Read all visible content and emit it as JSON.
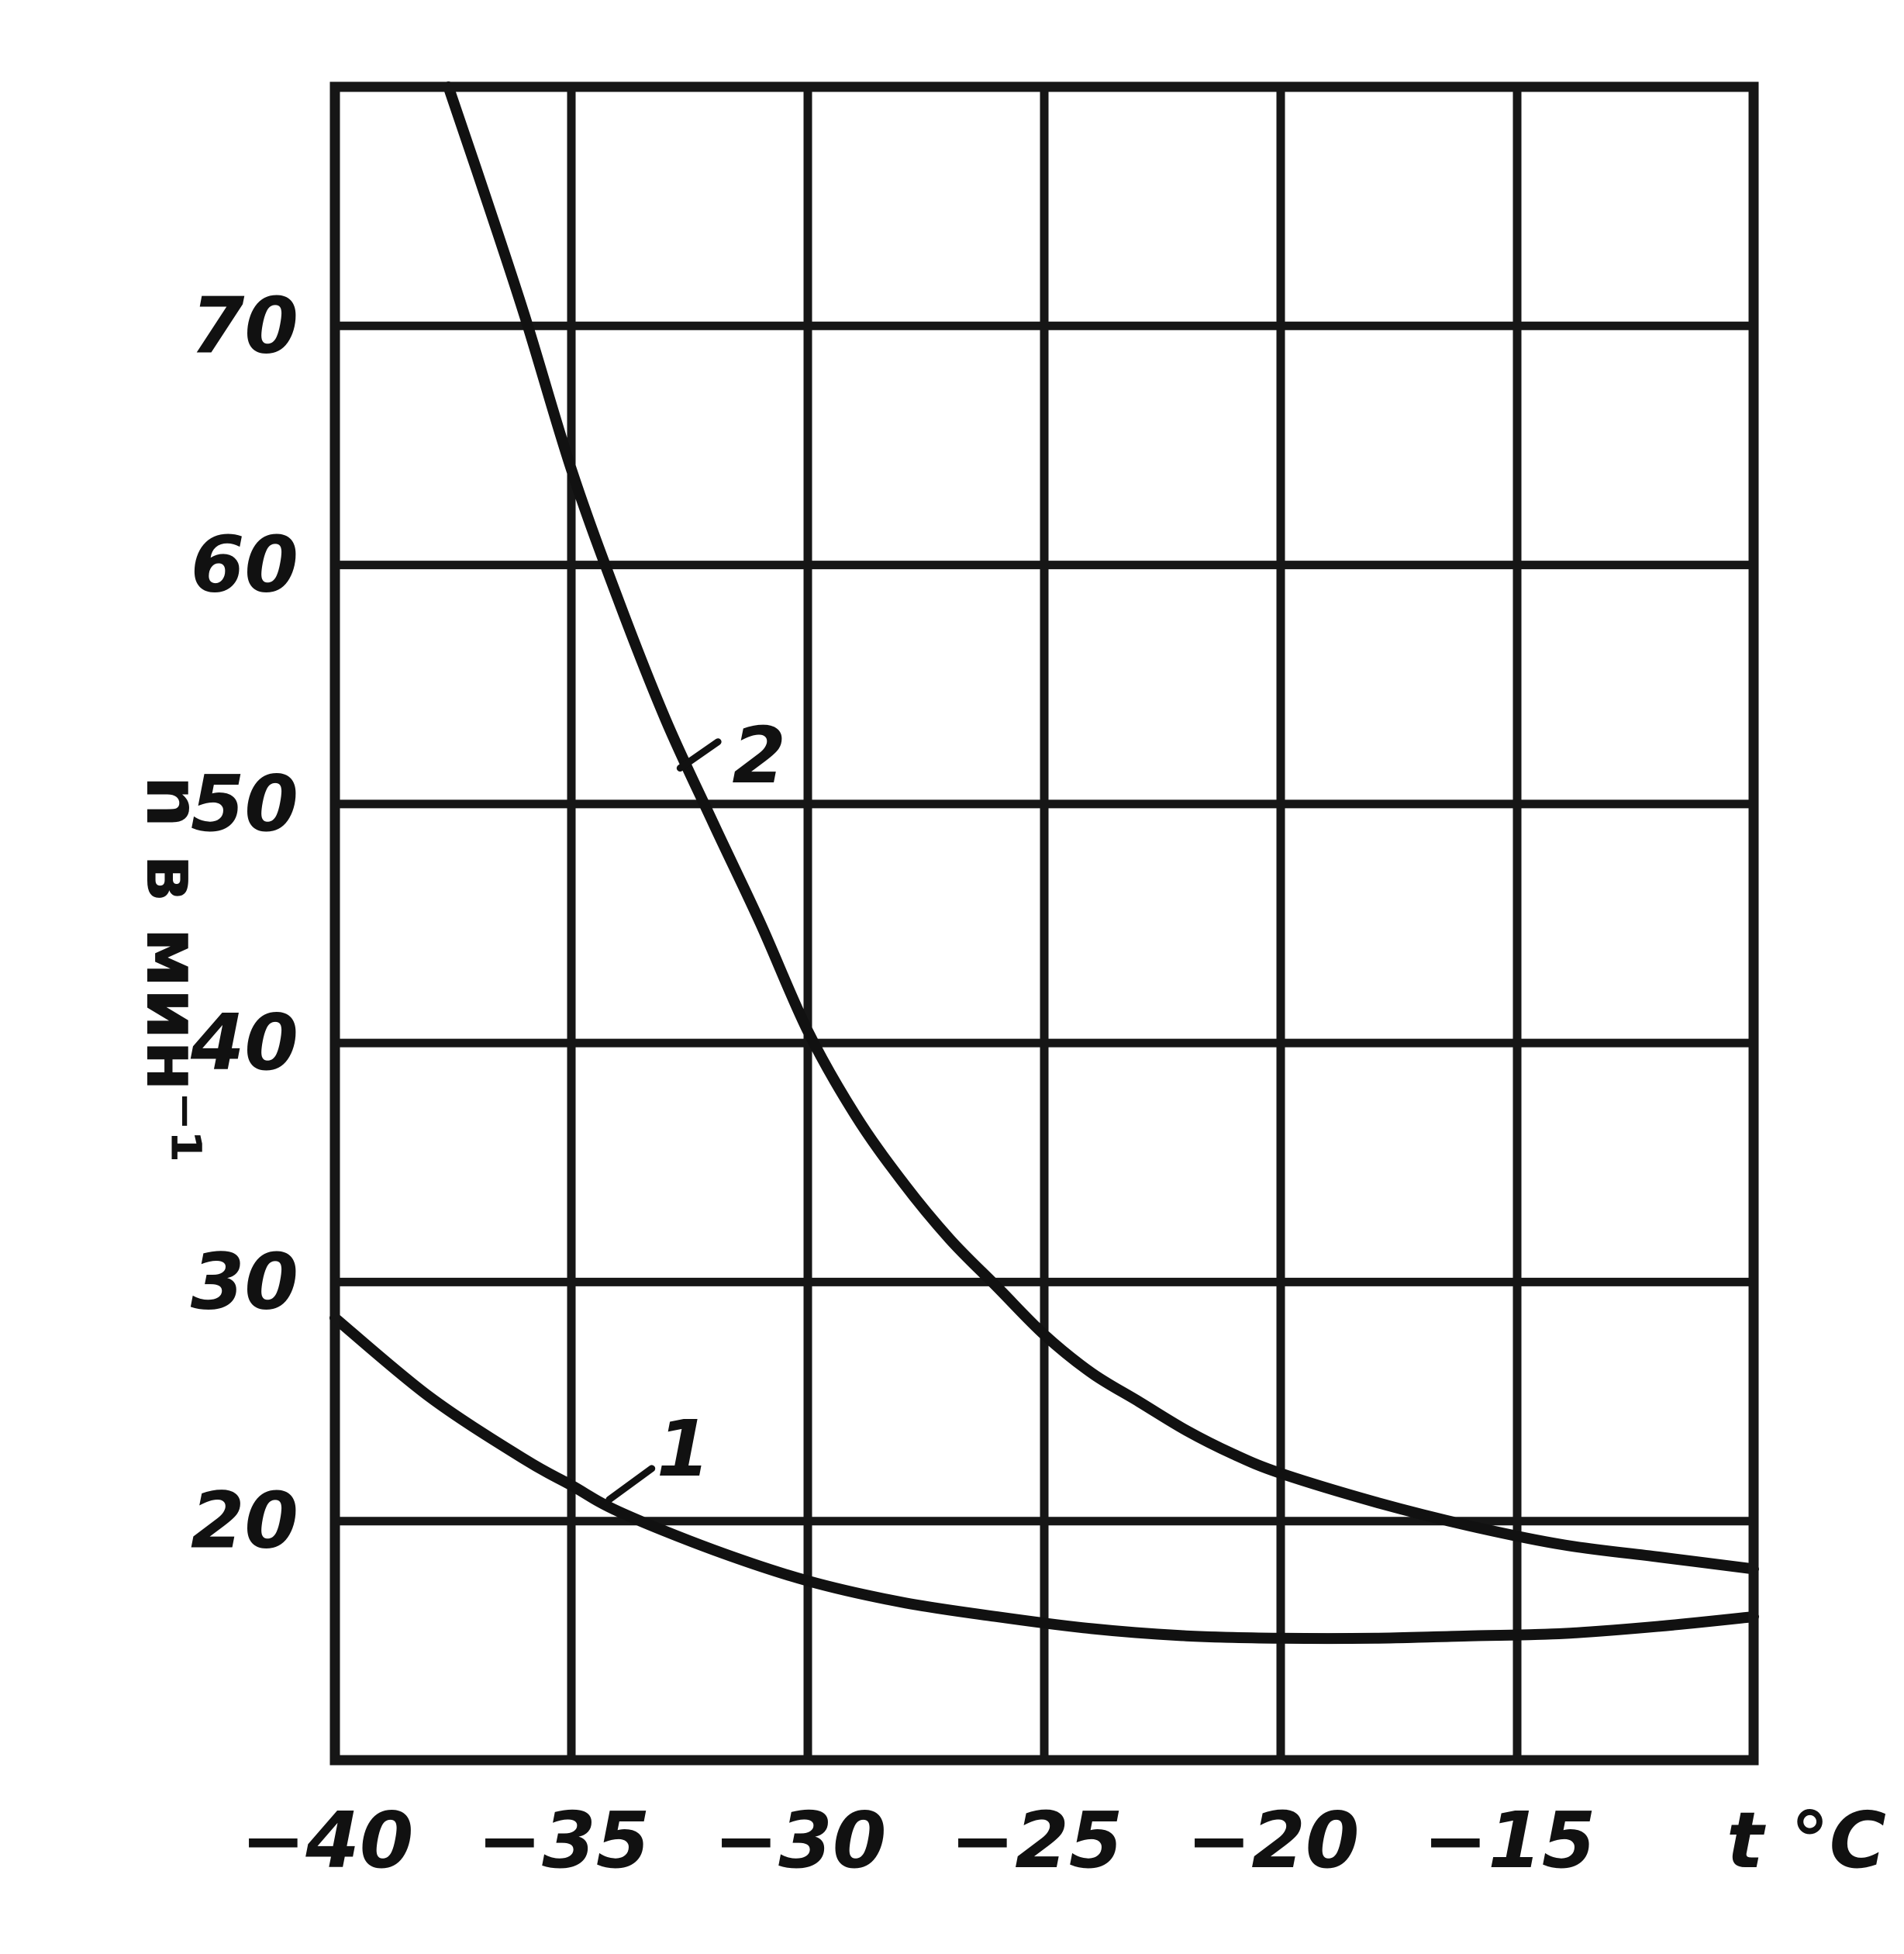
{
  "chart_data": {
    "type": "line",
    "xlabel": "t °C",
    "ylabel": "n в мин⁻¹",
    "xlim": [
      -40,
      -10
    ],
    "ylim": [
      10,
      80
    ],
    "x_ticks": [
      -40,
      -35,
      -30,
      -25,
      -20,
      -15
    ],
    "x_tick_labels": [
      "−40",
      "−35",
      "−30",
      "−25",
      "−20",
      "−15"
    ],
    "y_ticks": [
      20,
      30,
      40,
      50,
      60,
      70
    ],
    "y_tick_labels": [
      "20",
      "30",
      "40",
      "50",
      "60",
      "70"
    ],
    "grid": true,
    "series": [
      {
        "name": "1",
        "x": [
          -40,
          -38,
          -36,
          -35,
          -34,
          -32,
          -30,
          -28,
          -26,
          -24,
          -22,
          -20,
          -18,
          -16,
          -14,
          -12,
          -10
        ],
        "y": [
          28.5,
          25.2,
          22.6,
          21.5,
          20.4,
          18.8,
          17.5,
          16.6,
          16.0,
          15.5,
          15.2,
          15.1,
          15.1,
          15.2,
          15.3,
          15.6,
          16.0
        ]
      },
      {
        "name": "2",
        "x": [
          -37.6,
          -37,
          -36,
          -35,
          -34,
          -33,
          -32,
          -31,
          -30,
          -29,
          -28,
          -27,
          -26,
          -25,
          -24,
          -23,
          -22,
          -21,
          -20,
          -18,
          -16,
          -14,
          -12,
          -10
        ],
        "y": [
          80,
          76.5,
          70.5,
          64.0,
          58.5,
          53.5,
          49.2,
          45.0,
          40.5,
          37.0,
          34.2,
          31.8,
          29.8,
          27.8,
          26.2,
          25.0,
          23.8,
          22.8,
          22.0,
          20.8,
          19.8,
          19.0,
          18.5,
          18.0
        ]
      }
    ]
  }
}
